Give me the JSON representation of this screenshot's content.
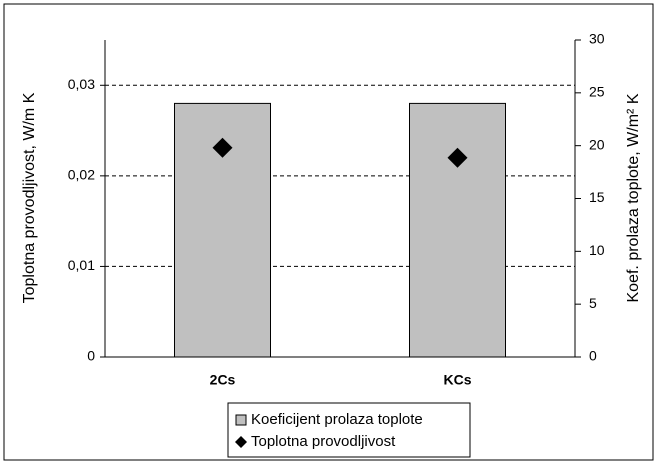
{
  "chart_data": {
    "type": "bar",
    "categories": [
      "2Cs",
      "KCs"
    ],
    "ylabel": "Toplotna provodljivost, W/m K",
    "y2label": "Koef. prolaza toplote, W/m² K",
    "ylim": [
      0,
      0.035
    ],
    "yticks": [
      0,
      {
        "value": 0.01,
        "label": "0,01"
      },
      {
        "value": 0.02,
        "label": "0,02"
      },
      {
        "value": 0.03,
        "label": "0,03"
      }
    ],
    "y2lim": [
      0,
      30
    ],
    "y2ticks": [
      0,
      5,
      10,
      15,
      20,
      25,
      30
    ],
    "grid": true,
    "legend": "bottom",
    "series": [
      {
        "name": "Koeficijent prolaza toplote",
        "color": "#c0c0c0",
        "axis": "y2",
        "kind": "bar",
        "values": [
          24,
          24
        ]
      },
      {
        "name": "Toplotna provodljivost",
        "color": "#000000",
        "axis": "y",
        "kind": "marker",
        "values": [
          0.0231,
          0.022
        ]
      }
    ]
  }
}
